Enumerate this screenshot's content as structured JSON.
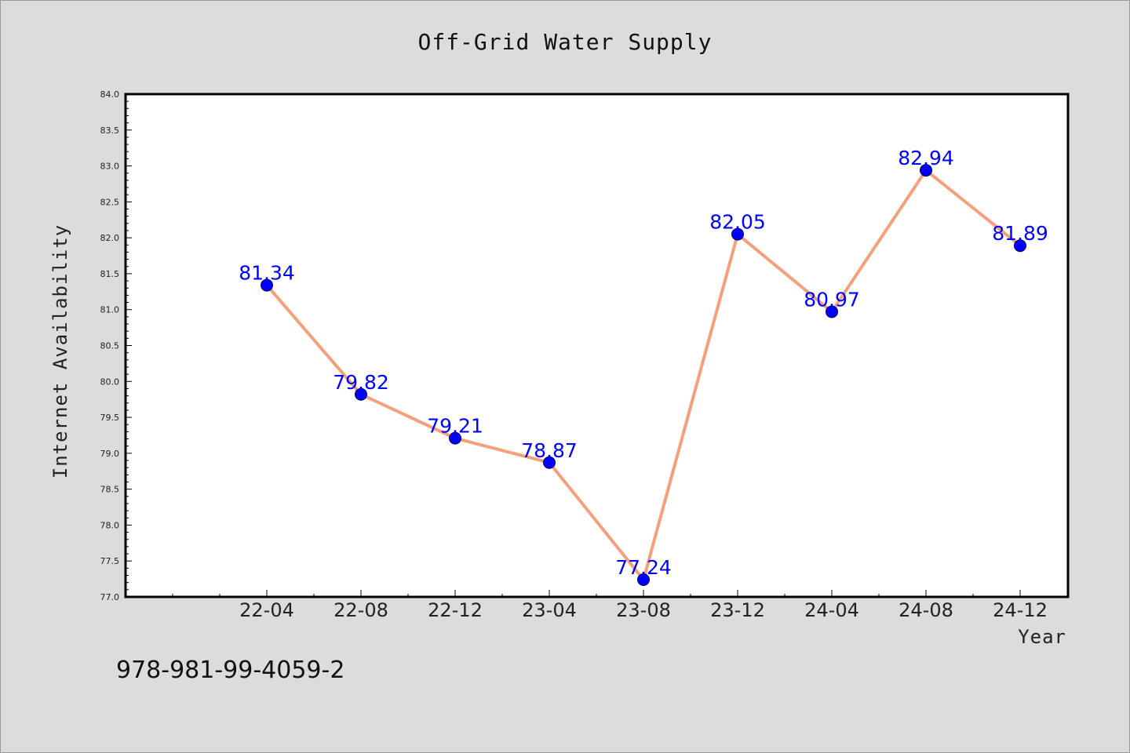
{
  "chart_data": {
    "type": "line",
    "title": "Off-Grid Water Supply",
    "xlabel": "Year",
    "ylabel": "Internet Availability",
    "categories": [
      "22-04",
      "22-08",
      "22-12",
      "23-04",
      "23-08",
      "23-12",
      "24-04",
      "24-08",
      "24-12"
    ],
    "series": [
      {
        "values": [
          81.34,
          79.82,
          79.21,
          78.87,
          77.24,
          82.05,
          80.97,
          82.94,
          81.89
        ],
        "labels": [
          "81.34",
          "79.82",
          "79.21",
          "78.87",
          "77.24",
          "82.05",
          "80.97",
          "82.94",
          "81.89"
        ],
        "line_color": "#f4a07c",
        "marker_color": "#0000ff"
      }
    ],
    "ylim": [
      77.0,
      84.0
    ],
    "yticks": [
      "77.0",
      "77.5",
      "78.0",
      "78.5",
      "79.0",
      "79.5",
      "80.0",
      "80.5",
      "81.0",
      "81.5",
      "82.0",
      "82.5",
      "83.0",
      "83.5",
      "84.0"
    ],
    "grid": false,
    "legend": "none"
  },
  "footer": {
    "isbn": "978-981-99-4059-2"
  },
  "colors": {
    "background": "#dcdcdc",
    "plot_area": "#ffffff",
    "line": "#f4a07c",
    "marker": "#0000ff",
    "data_label": "#0000ff"
  }
}
